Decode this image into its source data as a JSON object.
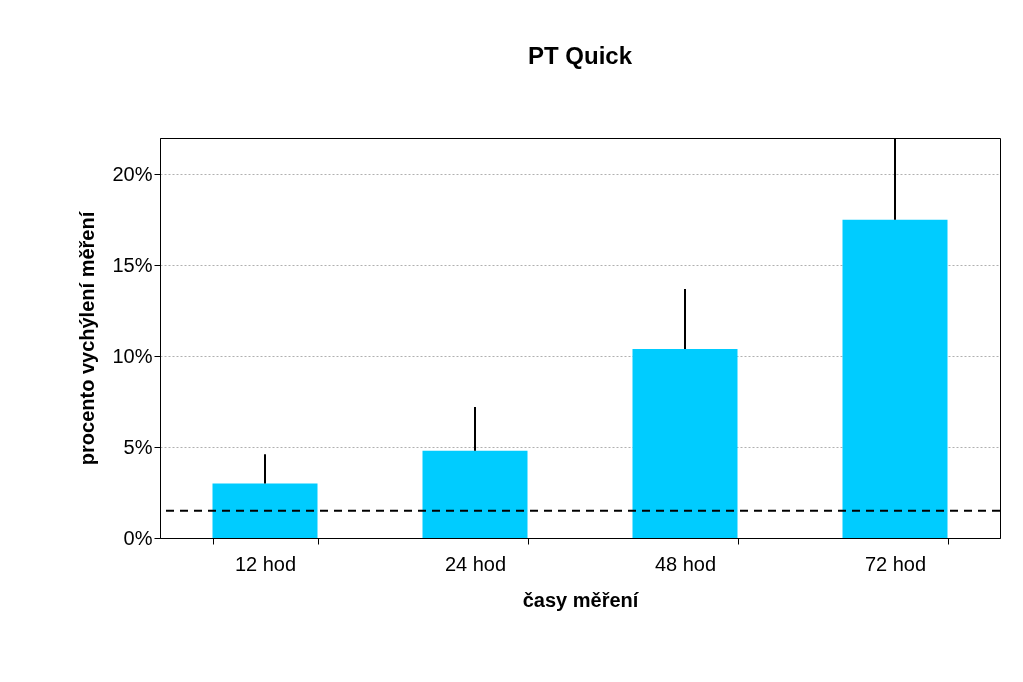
{
  "chart_data": {
    "type": "bar",
    "title": "PT Quick",
    "xlabel": "časy měření",
    "ylabel": "procento vychýlení měření",
    "categories": [
      "12 hod",
      "24 hod",
      "48 hod",
      "72 hod"
    ],
    "values": [
      3.0,
      4.8,
      10.4,
      17.5
    ],
    "color": "#00ccff",
    "errors": [
      [
        3.0,
        4.6
      ],
      [
        4.8,
        7.2
      ],
      [
        10.4,
        13.7
      ],
      [
        17.5,
        22
      ]
    ],
    "ylim": [
      0,
      22
    ],
    "yticks": [
      {
        "value": 0,
        "label": "0%"
      },
      {
        "value": 5,
        "label": "5%"
      },
      {
        "value": 10,
        "label": "10%"
      },
      {
        "value": 15,
        "label": "15%"
      },
      {
        "value": 20,
        "label": "20%"
      }
    ],
    "grid": "y",
    "ref_lines": [
      {
        "axis": "y",
        "value": 1.5,
        "label": null,
        "color": "#000000",
        "line_style": "dashed"
      }
    ]
  }
}
